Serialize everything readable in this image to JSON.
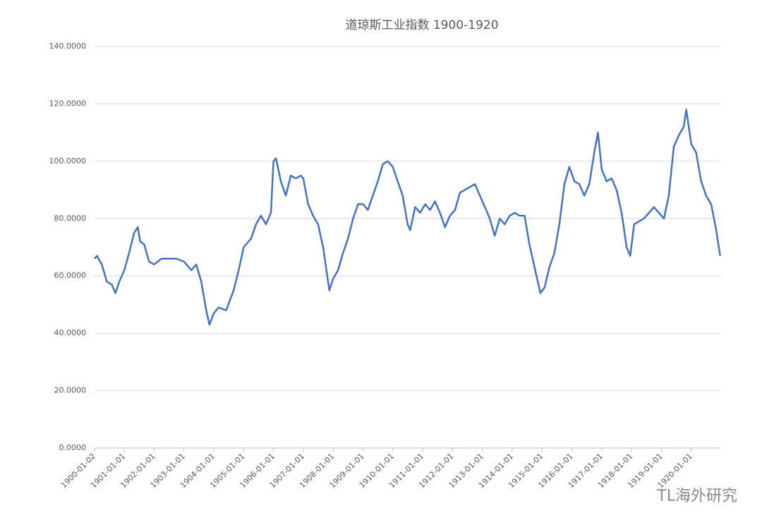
{
  "chart_data": {
    "type": "line",
    "title": "道琼斯工业指数 1900-1920",
    "watermark": "TL海外研究",
    "x": [
      "1900-01-02",
      "1900-02-01",
      "1900-04-01",
      "1900-06-01",
      "1900-08-01",
      "1900-09-15",
      "1900-11-01",
      "1901-01-01",
      "1901-03-01",
      "1901-05-01",
      "1901-06-15",
      "1901-07-15",
      "1901-09-01",
      "1901-11-01",
      "1902-01-01",
      "1902-04-01",
      "1902-07-01",
      "1902-10-01",
      "1903-01-01",
      "1903-04-01",
      "1903-06-01",
      "1903-08-01",
      "1903-10-01",
      "1903-11-10",
      "1904-01-01",
      "1904-03-01",
      "1904-06-01",
      "1904-09-01",
      "1904-11-01",
      "1905-01-01",
      "1905-04-01",
      "1905-06-01",
      "1905-08-01",
      "1905-10-01",
      "1905-12-01",
      "1906-01-01",
      "1906-02-01",
      "1906-04-01",
      "1906-06-01",
      "1906-08-01",
      "1906-10-01",
      "1906-12-01",
      "1907-01-01",
      "1907-03-01",
      "1907-05-01",
      "1907-07-01",
      "1907-09-01",
      "1907-11-15",
      "1908-01-01",
      "1908-03-01",
      "1908-05-01",
      "1908-07-01",
      "1908-09-01",
      "1908-11-01",
      "1909-01-01",
      "1909-03-01",
      "1909-05-01",
      "1909-07-01",
      "1909-09-01",
      "1909-11-01",
      "1910-01-01",
      "1910-03-01",
      "1910-05-01",
      "1910-07-01",
      "1910-08-01",
      "1910-10-01",
      "1910-12-01",
      "1911-02-01",
      "1911-04-01",
      "1911-06-01",
      "1911-08-01",
      "1911-10-01",
      "1911-12-01",
      "1912-02-01",
      "1912-04-01",
      "1912-06-01",
      "1912-08-01",
      "1912-10-01",
      "1912-12-01",
      "1913-02-01",
      "1913-04-01",
      "1913-06-01",
      "1913-08-01",
      "1913-10-01",
      "1913-12-01",
      "1914-02-01",
      "1914-04-01",
      "1914-06-01",
      "1914-07-30",
      "1914-12-12",
      "1915-02-01",
      "1915-04-01",
      "1915-06-01",
      "1915-08-01",
      "1915-10-01",
      "1915-12-01",
      "1916-02-01",
      "1916-04-01",
      "1916-06-01",
      "1916-08-01",
      "1916-10-01",
      "1916-11-15",
      "1917-01-01",
      "1917-03-01",
      "1917-05-01",
      "1917-07-01",
      "1917-09-01",
      "1917-11-01",
      "1917-12-15",
      "1918-02-01",
      "1918-04-01",
      "1918-06-01",
      "1918-08-01",
      "1918-10-01",
      "1918-12-01",
      "1919-02-01",
      "1919-04-01",
      "1919-06-01",
      "1919-08-01",
      "1919-10-01",
      "1919-11-01",
      "1920-01-01",
      "1920-03-01",
      "1920-05-01",
      "1920-07-01",
      "1920-09-01",
      "1920-11-01",
      "1920-12-20"
    ],
    "series": [
      {
        "name": "道琼斯工业指数",
        "color": "#4472c4",
        "values": [
          66,
          67,
          64,
          58,
          57,
          54,
          58,
          62,
          68,
          75,
          77,
          72,
          71,
          65,
          64,
          66,
          66,
          66,
          65,
          62,
          64,
          58,
          48,
          43,
          47,
          49,
          48,
          55,
          62,
          70,
          73,
          78,
          81,
          78,
          82,
          100,
          101,
          93,
          88,
          95,
          94,
          95,
          94,
          85,
          81,
          78,
          70,
          55,
          59,
          62,
          68,
          73,
          80,
          85,
          85,
          83,
          88,
          93,
          99,
          100,
          98,
          93,
          88,
          78,
          76,
          84,
          82,
          85,
          83,
          86,
          82,
          77,
          81,
          83,
          89,
          90,
          91,
          92,
          88,
          84,
          80,
          74,
          80,
          78,
          81,
          82,
          81,
          81,
          71,
          54,
          56,
          63,
          68,
          78,
          92,
          98,
          93,
          92,
          88,
          92,
          103,
          110,
          97,
          93,
          94,
          90,
          82,
          70,
          67,
          78,
          79,
          80,
          82,
          84,
          82,
          80,
          88,
          105,
          109,
          112,
          118,
          106,
          103,
          93,
          88,
          85,
          76,
          67
        ]
      }
    ],
    "xlim": [
      "1900-01-02",
      "1920-12-31"
    ],
    "xticks": [
      "1900-01-02",
      "1901-01-01",
      "1902-01-01",
      "1903-01-01",
      "1904-01-01",
      "1905-01-01",
      "1906-01-01",
      "1907-01-01",
      "1908-01-01",
      "1909-01-01",
      "1910-01-01",
      "1911-01-01",
      "1912-01-01",
      "1913-01-01",
      "1914-01-01",
      "1915-01-01",
      "1916-01-01",
      "1917-01-01",
      "1918-01-01",
      "1919-01-01",
      "1920-01-01"
    ],
    "ylim": [
      0,
      140
    ],
    "yticks": [
      {
        "value": 0,
        "label": "0.0000"
      },
      {
        "value": 20,
        "label": "20.0000"
      },
      {
        "value": 40,
        "label": "40.0000"
      },
      {
        "value": 60,
        "label": "60.0000"
      },
      {
        "value": 80,
        "label": "80.0000"
      },
      {
        "value": 100,
        "label": "100.0000"
      },
      {
        "value": 120,
        "label": "120.0000"
      },
      {
        "value": 140,
        "label": "140.0000"
      }
    ],
    "grid": true
  }
}
